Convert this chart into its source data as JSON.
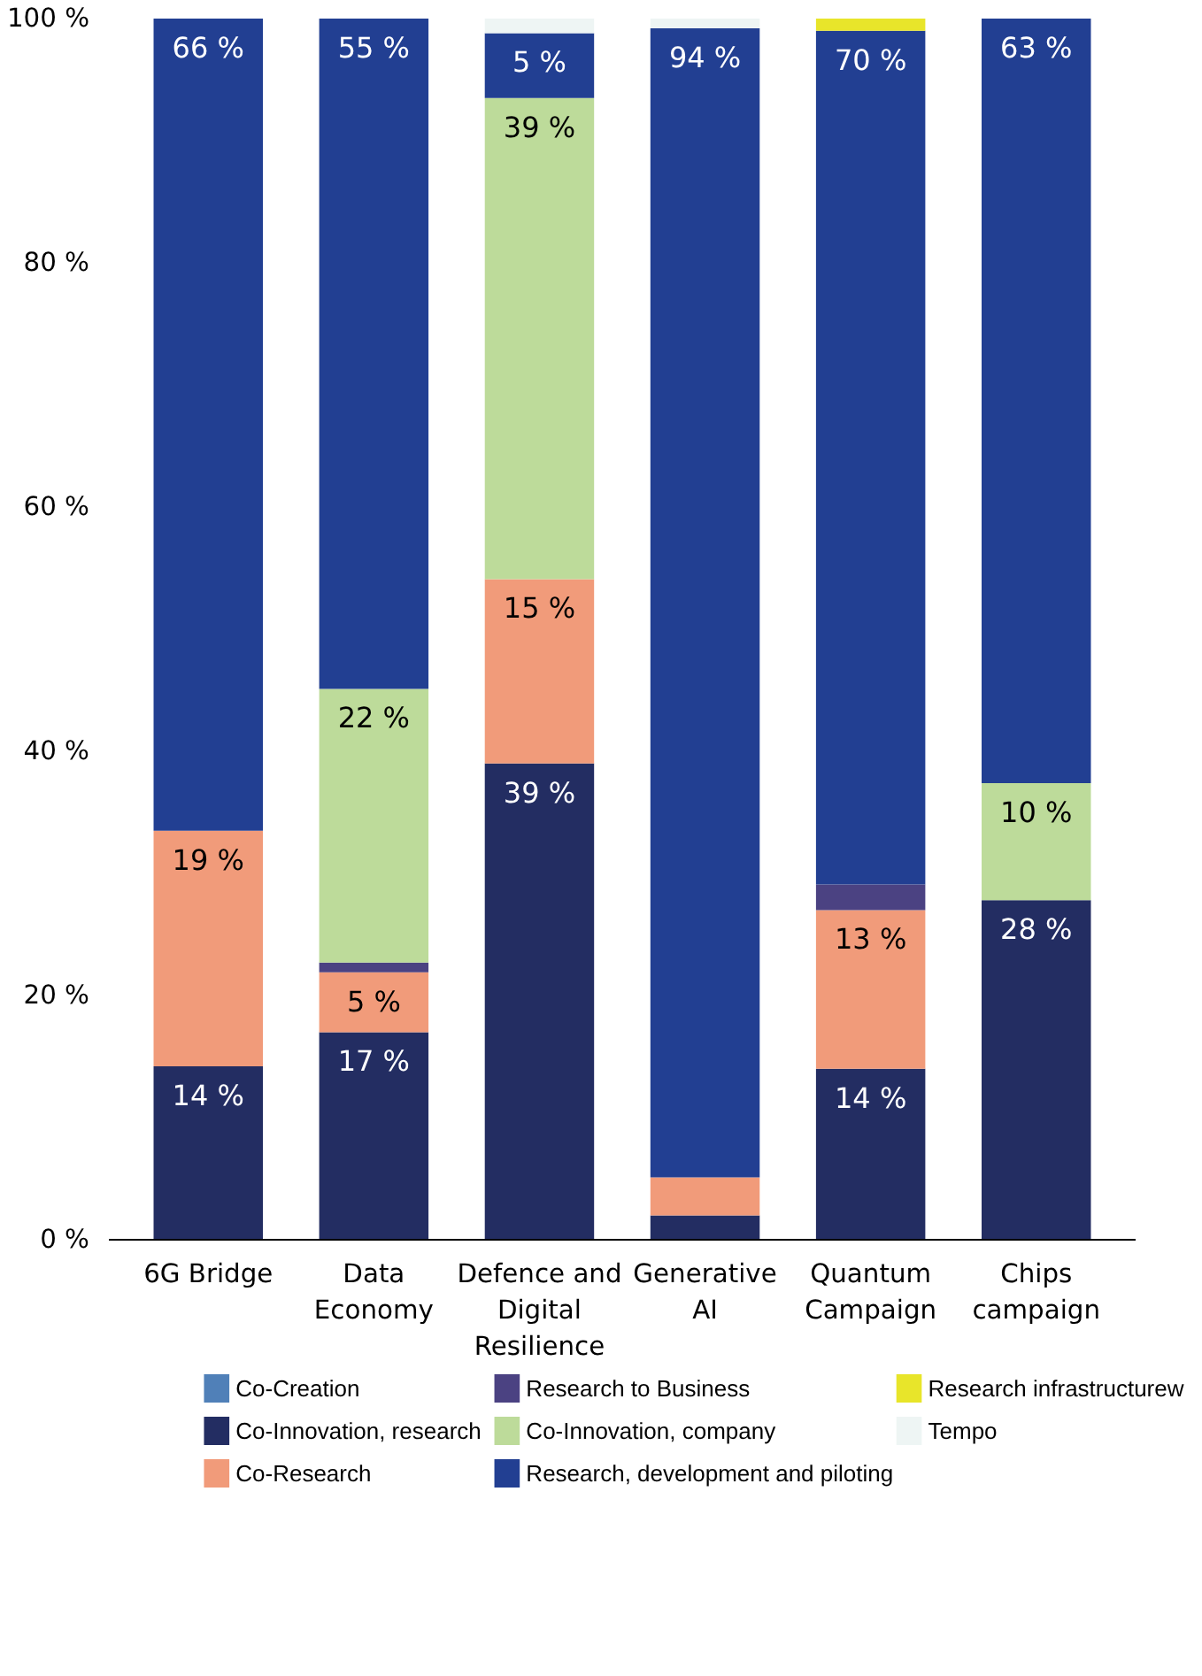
{
  "chart_data": {
    "type": "bar",
    "stacked": true,
    "categories": [
      "6G Bridge",
      "Data Economy",
      "Defence and Digital Resilience",
      "Generative AI",
      "Quantum Campaign",
      "Chips campaign"
    ],
    "ylim": [
      0,
      100
    ],
    "yticks": [
      {
        "value": 0,
        "label": "0 %"
      },
      {
        "value": 20,
        "label": "20 %"
      },
      {
        "value": 40,
        "label": "40 %"
      },
      {
        "value": 60,
        "label": "60 %"
      },
      {
        "value": 80,
        "label": "80 %"
      },
      {
        "value": 100,
        "label": "100 %"
      }
    ],
    "grid": false,
    "legend": "bottom",
    "series": [
      {
        "name": "Co-Creation",
        "color": "#5080b8",
        "values": [
          null,
          null,
          null,
          null,
          null,
          null
        ]
      },
      {
        "name": "Co-Innovation, research",
        "color": "#232d62",
        "values": [
          14.2,
          17.0,
          39.0,
          2.0,
          14.0,
          27.8
        ],
        "value_labels": [
          "14 %",
          "17 %",
          "39 %",
          null,
          "14 %",
          "28 %"
        ]
      },
      {
        "name": "Co-Research",
        "color": "#f19b7a",
        "values": [
          19.3,
          4.9,
          15.1,
          3.1,
          13.0,
          null
        ],
        "value_labels": [
          "19 %",
          "5 %",
          "15 %",
          null,
          "13 %",
          null
        ]
      },
      {
        "name": "Research to Business",
        "color": "#4b4282",
        "values": [
          null,
          0.8,
          null,
          null,
          2.1,
          null
        ]
      },
      {
        "name": "Co-Innovation, company",
        "color": "#bddb9a",
        "values": [
          null,
          22.4,
          39.4,
          null,
          null,
          9.6
        ],
        "value_labels": [
          null,
          "22 %",
          "39 %",
          null,
          null,
          "10 %"
        ]
      },
      {
        "name": "Research, development and piloting",
        "color": "#223f92",
        "values": [
          66.5,
          54.9,
          5.3,
          94.1,
          69.9,
          62.6
        ],
        "value_labels": [
          "66 %",
          "55 %",
          "5 %",
          "94 %",
          "70 %",
          "63 %"
        ]
      },
      {
        "name": "Research infrastructurew",
        "color": "#e8e52a",
        "values": [
          null,
          null,
          null,
          null,
          1.0,
          null
        ]
      },
      {
        "name": "Tempo",
        "color": "#eef5f4",
        "values": [
          null,
          null,
          1.2,
          0.8,
          null,
          null
        ]
      }
    ]
  }
}
